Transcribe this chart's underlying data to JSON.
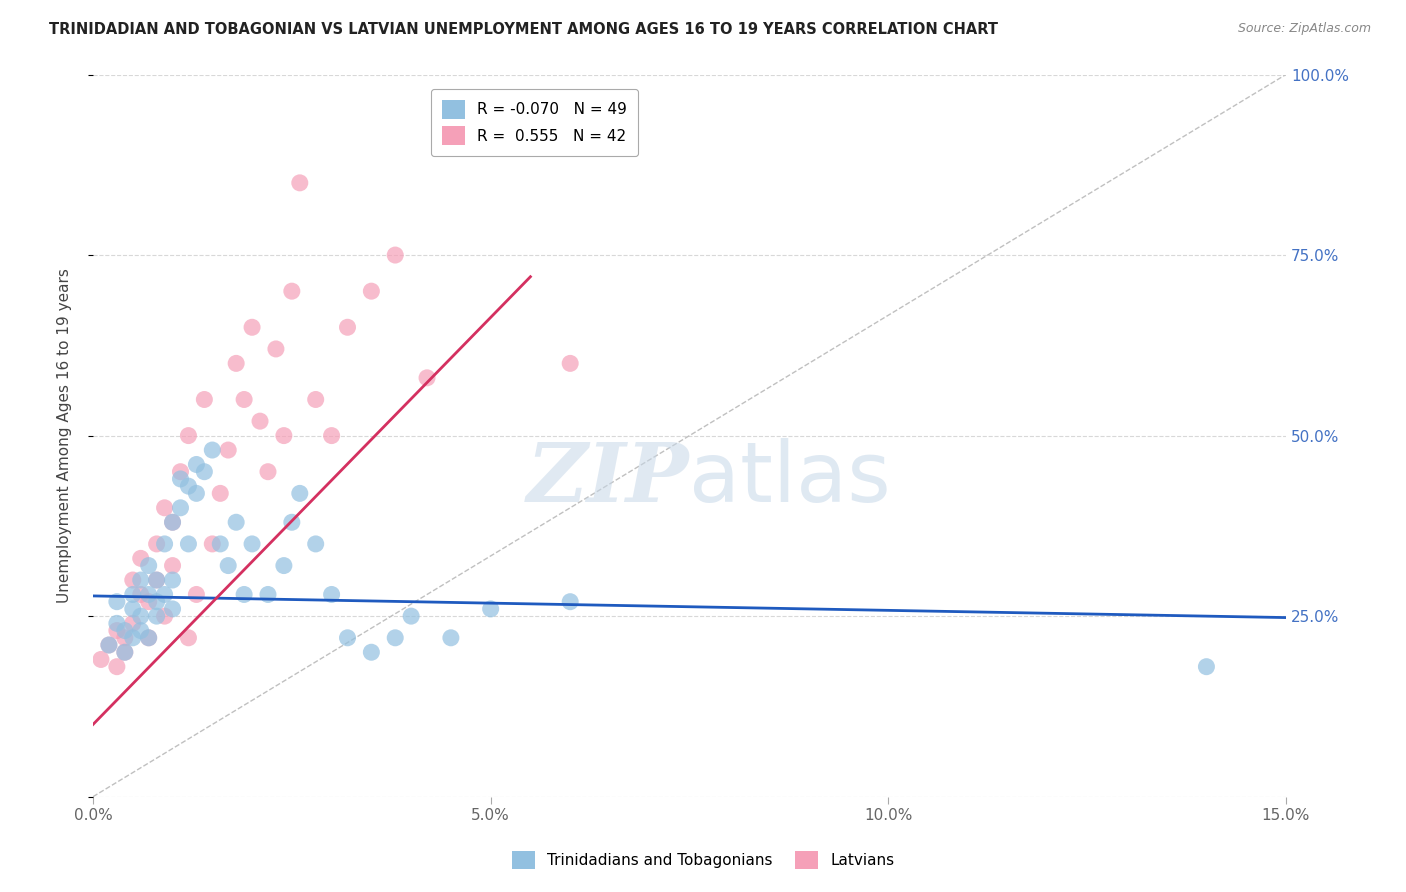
{
  "title": "TRINIDADIAN AND TOBAGONIAN VS LATVIAN UNEMPLOYMENT AMONG AGES 16 TO 19 YEARS CORRELATION CHART",
  "source": "Source: ZipAtlas.com",
  "ylabel": "Unemployment Among Ages 16 to 19 years",
  "xlim": [
    0.0,
    0.15
  ],
  "ylim": [
    0.0,
    1.0
  ],
  "xticks": [
    0.0,
    0.05,
    0.1,
    0.15
  ],
  "xtick_labels": [
    "0.0%",
    "5.0%",
    "10.0%",
    "15.0%"
  ],
  "yticks": [
    0.0,
    0.25,
    0.5,
    0.75,
    1.0
  ],
  "ytick_labels": [
    "",
    "25.0%",
    "50.0%",
    "75.0%",
    "100.0%"
  ],
  "blue_label": "Trinidadians and Tobagonians",
  "pink_label": "Latvians",
  "blue_R": -0.07,
  "blue_N": 49,
  "pink_R": 0.555,
  "pink_N": 42,
  "blue_color": "#92c0e0",
  "pink_color": "#f5a0b8",
  "blue_line_color": "#1f5abf",
  "pink_line_color": "#d43060",
  "ref_line_color": "#c0c0c0",
  "grid_color": "#d8d8d8",
  "title_color": "#222222",
  "axis_label_color": "#444444",
  "ytick_color": "#4472c4",
  "watermark_color": "#c8d8e8",
  "blue_scatter_x": [
    0.002,
    0.003,
    0.003,
    0.004,
    0.004,
    0.005,
    0.005,
    0.005,
    0.006,
    0.006,
    0.006,
    0.007,
    0.007,
    0.007,
    0.008,
    0.008,
    0.008,
    0.009,
    0.009,
    0.01,
    0.01,
    0.01,
    0.011,
    0.011,
    0.012,
    0.012,
    0.013,
    0.013,
    0.014,
    0.015,
    0.016,
    0.017,
    0.018,
    0.019,
    0.02,
    0.022,
    0.024,
    0.025,
    0.026,
    0.028,
    0.03,
    0.032,
    0.035,
    0.038,
    0.04,
    0.045,
    0.05,
    0.06,
    0.14
  ],
  "blue_scatter_y": [
    0.21,
    0.27,
    0.24,
    0.23,
    0.2,
    0.22,
    0.26,
    0.28,
    0.23,
    0.25,
    0.3,
    0.22,
    0.28,
    0.32,
    0.25,
    0.3,
    0.27,
    0.35,
    0.28,
    0.38,
    0.3,
    0.26,
    0.4,
    0.44,
    0.35,
    0.43,
    0.42,
    0.46,
    0.45,
    0.48,
    0.35,
    0.32,
    0.38,
    0.28,
    0.35,
    0.28,
    0.32,
    0.38,
    0.42,
    0.35,
    0.28,
    0.22,
    0.2,
    0.22,
    0.25,
    0.22,
    0.26,
    0.27,
    0.18
  ],
  "pink_scatter_x": [
    0.001,
    0.002,
    0.003,
    0.003,
    0.004,
    0.004,
    0.005,
    0.005,
    0.006,
    0.006,
    0.007,
    0.007,
    0.008,
    0.008,
    0.009,
    0.009,
    0.01,
    0.01,
    0.011,
    0.012,
    0.012,
    0.013,
    0.014,
    0.015,
    0.016,
    0.017,
    0.018,
    0.019,
    0.02,
    0.021,
    0.022,
    0.023,
    0.024,
    0.025,
    0.026,
    0.028,
    0.03,
    0.032,
    0.035,
    0.038,
    0.042,
    0.06
  ],
  "pink_scatter_y": [
    0.19,
    0.21,
    0.18,
    0.23,
    0.22,
    0.2,
    0.24,
    0.3,
    0.28,
    0.33,
    0.22,
    0.27,
    0.35,
    0.3,
    0.4,
    0.25,
    0.32,
    0.38,
    0.45,
    0.22,
    0.5,
    0.28,
    0.55,
    0.35,
    0.42,
    0.48,
    0.6,
    0.55,
    0.65,
    0.52,
    0.45,
    0.62,
    0.5,
    0.7,
    0.85,
    0.55,
    0.5,
    0.65,
    0.7,
    0.75,
    0.58,
    0.6
  ],
  "blue_line_x": [
    0.0,
    0.15
  ],
  "blue_line_y": [
    0.278,
    0.248
  ],
  "pink_line_x": [
    0.0,
    0.055
  ],
  "pink_line_y": [
    0.1,
    0.72
  ]
}
